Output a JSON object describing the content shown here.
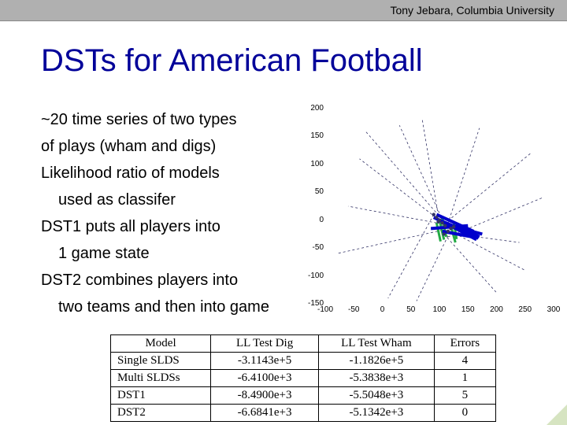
{
  "header": {
    "text": "Tony Jebara, Columbia University"
  },
  "title": "DSTs for American Football",
  "bullets": {
    "l1": "~20 time series of two types",
    "l2": "of plays (wham and digs)",
    "l3": "Likelihood ratio of models",
    "l4": "used as classifer",
    "l5": "DST1 puts all players into",
    "l6": "1 game state",
    "l7": "DST2 combines players into",
    "l8": "two teams and then into game"
  },
  "chart": {
    "type": "scatter",
    "xlim": [
      -100,
      300
    ],
    "ylim": [
      -150,
      200
    ],
    "xticks": [
      -100,
      -50,
      0,
      50,
      100,
      150,
      200,
      250,
      300
    ],
    "yticks": [
      -150,
      -100,
      -50,
      0,
      50,
      100,
      150,
      200
    ],
    "background_color": "#ffffff",
    "tick_fontsize": 10,
    "colors": {
      "blue": "#0000cc",
      "green": "#22aa44",
      "dash": "#333366"
    },
    "blue_lines": [
      [
        [
          100,
          0
        ],
        [
          170,
          -30
        ]
      ],
      [
        [
          110,
          -5
        ],
        [
          165,
          -35
        ]
      ],
      [
        [
          95,
          10
        ],
        [
          160,
          -20
        ]
      ],
      [
        [
          90,
          5
        ],
        [
          155,
          -28
        ]
      ],
      [
        [
          120,
          -10
        ],
        [
          175,
          -25
        ]
      ],
      [
        [
          85,
          -15
        ],
        [
          150,
          -10
        ]
      ],
      [
        [
          105,
          -20
        ],
        [
          168,
          -32
        ]
      ]
    ],
    "green_lines": [
      [
        [
          120,
          -10
        ],
        [
          128,
          -40
        ]
      ],
      [
        [
          100,
          0
        ],
        [
          108,
          -35
        ]
      ],
      [
        [
          105,
          5
        ],
        [
          112,
          -30
        ]
      ],
      [
        [
          95,
          -5
        ],
        [
          102,
          -38
        ]
      ],
      [
        [
          125,
          -2
        ],
        [
          130,
          -34
        ]
      ]
    ],
    "dashed_lines": [
      [
        [
          110,
          -10
        ],
        [
          30,
          170
        ]
      ],
      [
        [
          115,
          -30
        ],
        [
          280,
          40
        ]
      ],
      [
        [
          100,
          0
        ],
        [
          -40,
          110
        ]
      ],
      [
        [
          90,
          10
        ],
        [
          10,
          -140
        ]
      ],
      [
        [
          120,
          -20
        ],
        [
          250,
          -90
        ]
      ],
      [
        [
          95,
          -5
        ],
        [
          -60,
          25
        ]
      ],
      [
        [
          112,
          -15
        ],
        [
          170,
          165
        ]
      ],
      [
        [
          108,
          -25
        ],
        [
          200,
          -130
        ]
      ],
      [
        [
          105,
          -18
        ],
        [
          -80,
          -60
        ]
      ],
      [
        [
          98,
          8
        ],
        [
          70,
          180
        ]
      ],
      [
        [
          115,
          -28
        ],
        [
          60,
          -145
        ]
      ],
      [
        [
          102,
          -12
        ],
        [
          260,
          120
        ]
      ],
      [
        [
          110,
          -5
        ],
        [
          -30,
          160
        ]
      ],
      [
        [
          107,
          -22
        ],
        [
          240,
          -40
        ]
      ]
    ],
    "markers": [
      [
        110,
        -10
      ],
      [
        100,
        0
      ],
      [
        95,
        5
      ],
      [
        120,
        -15
      ],
      [
        105,
        -5
      ],
      [
        115,
        -20
      ],
      [
        90,
        10
      ],
      [
        108,
        -25
      ],
      [
        98,
        -3
      ],
      [
        125,
        -12
      ]
    ]
  },
  "table": {
    "columns": [
      "Model",
      "LL Test Dig",
      "LL Test Wham",
      "Errors"
    ],
    "rows": [
      [
        "Single SLDS",
        "-3.1143e+5",
        "-1.1826e+5",
        "4"
      ],
      [
        "Multi SLDSs",
        "-6.4100e+3",
        "-5.3838e+3",
        "1"
      ],
      [
        "DST1",
        "-8.4900e+3",
        "-5.5048e+3",
        "5"
      ],
      [
        "DST2",
        "-6.6841e+3",
        "-5.1342e+3",
        "0"
      ]
    ],
    "col_widths": [
      "26%",
      "28%",
      "30%",
      "16%"
    ]
  }
}
